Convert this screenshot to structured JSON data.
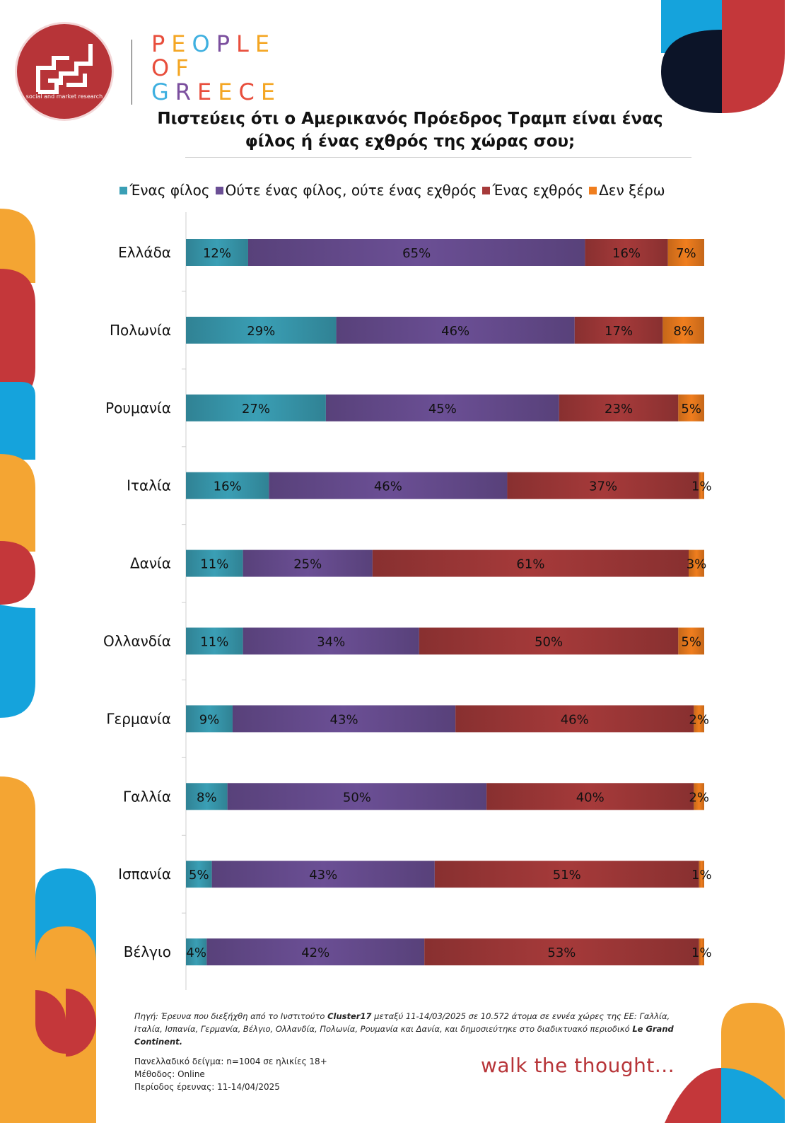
{
  "brand": {
    "logo_tagline": "social and market research",
    "name_lines": [
      "PEOPLE",
      "OF",
      "GREECE"
    ],
    "letter_colors": [
      "#e84e3c",
      "#f4a623",
      "#3fb0e0",
      "#7b4f9e",
      "#e84e3c",
      "#f4a623"
    ],
    "slogan": "walk the thought..."
  },
  "title_lines": [
    "Πιστεύεις ότι ο Αμερικανός Πρόεδρος Τραμπ είναι ένας",
    "φίλος ή ένας εχθρός της χώρας σου;"
  ],
  "chart_data": {
    "type": "bar",
    "orientation": "horizontal",
    "stacked": true,
    "xlim": [
      0,
      100
    ],
    "legend_position": "top",
    "categories": [
      "Ελλάδα",
      "Πολωνία",
      "Ρουμανία",
      "Ιταλία",
      "Δανία",
      "Ολλανδία",
      "Γερμανία",
      "Γαλλία",
      "Ισπανία",
      "Βέλγιο"
    ],
    "series": [
      {
        "name": "Ένας φίλος",
        "color": "#3a9fb5",
        "values": [
          12,
          29,
          27,
          16,
          11,
          11,
          9,
          8,
          5,
          4
        ]
      },
      {
        "name": "Ούτε ένας φίλος, ούτε ένας εχθρός",
        "color": "#6b4f95",
        "values": [
          65,
          46,
          45,
          46,
          25,
          34,
          43,
          50,
          43,
          42
        ]
      },
      {
        "name": "Ένας εχθρός",
        "color": "#a63a3a",
        "values": [
          16,
          17,
          23,
          37,
          61,
          50,
          46,
          40,
          51,
          53
        ]
      },
      {
        "name": "Δεν ξέρω",
        "color": "#f07e1e",
        "values": [
          7,
          8,
          5,
          1,
          3,
          5,
          2,
          2,
          1,
          1
        ]
      }
    ]
  },
  "footnote": {
    "source_prefix": "Πηγή: Έρευνα που διεξήχθη από το Ινστιτούτο ",
    "source_institute": "Cluster17",
    "source_middle": " μεταξύ 11-14/03/2025 σε 10.572 άτομα σε εννέα χώρες της ΕΕ: Γαλλία, Ιταλία, Ισπανία, Γερμανία, Βέλγιο, Ολλανδία, Πολωνία, Ρουμανία και Δανία, και δημοσιεύτηκε στο διαδικτυακό περιοδικό ",
    "source_journal": "Le Grand Continent.",
    "sample": "Πανελλαδικό δείγμα: n=1004 σε ηλικίες 18+",
    "method": "Μέθοδος: Online",
    "period": "Περίοδος έρευνας: 11-14/04/2025"
  }
}
